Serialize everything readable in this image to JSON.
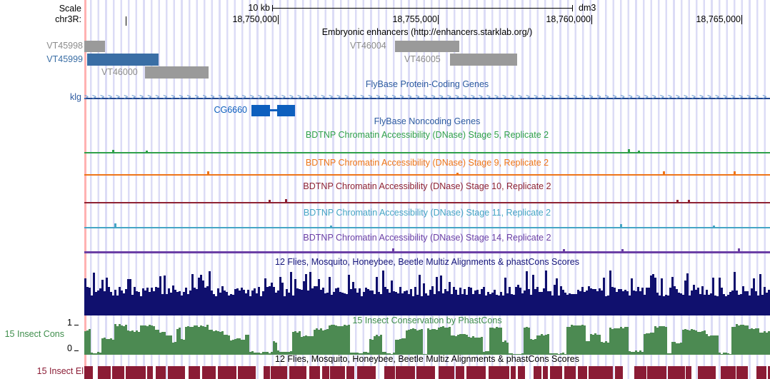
{
  "ruler": {
    "scale_label": "Scale",
    "chrom_label": "chr3R:",
    "bar_label": "10 kb",
    "assembly": "dm3",
    "ticks": [
      "18,750,000",
      "18,755,000",
      "18,760,000",
      "18,765,000"
    ]
  },
  "tracks": {
    "enhancers": {
      "title": "Embryonic enhancers (http://enhancers.starklab.org/)",
      "items": [
        {
          "name": "VT45998",
          "color": "#9A9A9A",
          "label_color": "#8C8C8C"
        },
        {
          "name": "VT45999",
          "color": "#3A6EA5",
          "label_color": "#3A6EA5"
        },
        {
          "name": "VT46000",
          "color": "#9A9A9A",
          "label_color": "#8C8C8C"
        },
        {
          "name": "VT46004",
          "color": "#9A9A9A",
          "label_color": "#8C8C8C"
        },
        {
          "name": "VT46005",
          "color": "#9A9A9A",
          "label_color": "#8C8C8C"
        }
      ]
    },
    "coding": {
      "title": "FlyBase Protein-Coding Genes",
      "title_color": "#2C5AA0",
      "gene_klg": "klg",
      "gene_cg6660": "CG6660"
    },
    "noncoding": {
      "title": "FlyBase Noncoding Genes",
      "title_color": "#2C5AA0"
    },
    "bdtnp": {
      "items": [
        {
          "label": "BDTNP Chromatin Accessibility (DNase) Stage 5, Replicate 2",
          "color": "#2FA04A"
        },
        {
          "label": "BDTNP Chromatin Accessibility (DNase) Stage 9, Replicate 2",
          "color": "#EE7518"
        },
        {
          "label": "BDTNP Chromatin Accessibility (DNase) Stage 10, Replicate 2",
          "color": "#8E2233"
        },
        {
          "label": "BDTNP Chromatin Accessibility (DNase) Stage 11, Replicate 2",
          "color": "#45A5C5"
        },
        {
          "label": "BDTNP Chromatin Accessibility (DNase) Stage 14, Replicate 2",
          "color": "#6B3FA5"
        }
      ]
    },
    "multiz": {
      "title": "12 Flies, Mosquito, Honeybee, Beetle Multiz Alignments & phastCons Scores",
      "title_color": "#14147A"
    },
    "phastcons": {
      "title": "15 Insect Conservation by PhastCons",
      "title_color": "#3F8E4C",
      "left_label": "15 Insect Cons",
      "axis_top": "1",
      "axis_bottom": "0"
    },
    "elements": {
      "title": "12 Flies, Mosquito, Honeybee, Beetle Multiz Alignments & phastCons Scores",
      "title_color": "#000000",
      "left_label": "15 Insect El"
    }
  },
  "colors": {
    "grid": "#DCDCF6",
    "highlight": "#FFB2B2",
    "gene_blue": "#0D5FBE",
    "gene_line_blue": "#24488F",
    "gene_arrow_blue": "#6C9BD2",
    "navy": "#10106E",
    "conservation_green": "#4C8A52",
    "elements_red": "#8B1C35"
  }
}
